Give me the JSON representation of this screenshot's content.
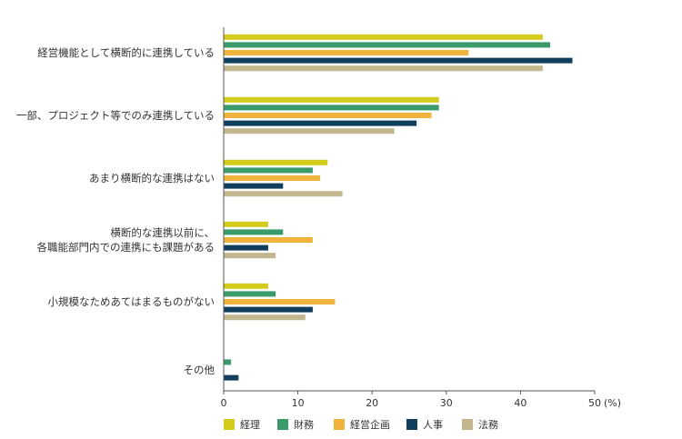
{
  "chart_data": {
    "type": "bar",
    "orientation": "horizontal",
    "categories": [
      [
        "経営機能として横断的に連携している"
      ],
      [
        "一部、プロジェクト等でのみ連携している"
      ],
      [
        "あまり横断的な連携はない"
      ],
      [
        "横断的な連携以前に、",
        "各職能部門内での連携にも課題がある"
      ],
      [
        "小規模なためあてはまるものがない"
      ],
      [
        "その他"
      ]
    ],
    "series": [
      {
        "name": "経理",
        "color": "#d4cc1c",
        "values": [
          43,
          29,
          14,
          6,
          6,
          0
        ]
      },
      {
        "name": "財務",
        "color": "#3a9a6a",
        "values": [
          44,
          29,
          12,
          8,
          7,
          1
        ]
      },
      {
        "name": "経営企画",
        "color": "#f0b43c",
        "values": [
          33,
          28,
          13,
          12,
          15,
          0
        ]
      },
      {
        "name": "人事",
        "color": "#123e5e",
        "values": [
          47,
          26,
          8,
          6,
          12,
          2
        ]
      },
      {
        "name": "法務",
        "color": "#c3b78f",
        "values": [
          43,
          23,
          16,
          7,
          11,
          0
        ]
      }
    ],
    "xlim": [
      0,
      50
    ],
    "xticks": [
      0,
      10,
      20,
      30,
      40,
      50
    ],
    "unit_label": "(%)",
    "legend": "bottom",
    "grid": false
  }
}
